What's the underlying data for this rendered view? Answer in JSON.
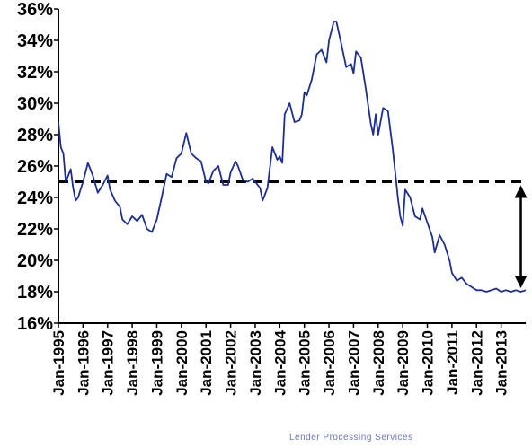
{
  "chart_data": {
    "type": "line",
    "title": "",
    "xlabel": "",
    "ylabel": "",
    "y_tick_labels": [
      "36%",
      "34%",
      "32%",
      "30%",
      "28%",
      "26%",
      "24%",
      "22%",
      "20%",
      "18%",
      "16%"
    ],
    "y_tick_values": [
      36,
      34,
      32,
      30,
      28,
      26,
      24,
      22,
      20,
      18,
      16
    ],
    "ylim": [
      16,
      36
    ],
    "x_tick_labels": [
      "Jan-1995",
      "Jan-1996",
      "Jan-1997",
      "Jan-1998",
      "Jan-1999",
      "Jan-2000",
      "Jan-2001",
      "Jan-2002",
      "Jan-2003",
      "Jan-2004",
      "Jan-2005",
      "Jan-2006",
      "Jan-2007",
      "Jan-2008",
      "Jan-2009",
      "Jan-2010",
      "Jan-2011",
      "Jan-2012",
      "Jan-2013"
    ],
    "x_tick_years": [
      1995,
      1996,
      1997,
      1998,
      1999,
      2000,
      2001,
      2002,
      2003,
      2004,
      2005,
      2006,
      2007,
      2008,
      2009,
      2010,
      2011,
      2012,
      2013
    ],
    "xlim": [
      1995,
      2014
    ],
    "grid": false,
    "series_color": "#1c2f8f",
    "series": [
      {
        "x": [
          1995.0,
          1995.1,
          1995.2,
          1995.3,
          1995.5,
          1995.6,
          1995.7,
          1995.8,
          1996.0,
          1996.2,
          1996.4,
          1996.6,
          1996.8,
          1997.0,
          1997.1,
          1997.3,
          1997.5,
          1997.6,
          1997.8,
          1998.0,
          1998.2,
          1998.4,
          1998.6,
          1998.8,
          1999.0,
          1999.2,
          1999.4,
          1999.6,
          1999.8,
          2000.0,
          2000.2,
          2000.4,
          2000.6,
          2000.8,
          2001.0,
          2001.1,
          2001.3,
          2001.5,
          2001.7,
          2001.9,
          2002.0,
          2002.2,
          2002.3,
          2002.5,
          2002.7,
          2002.9,
          2003.0,
          2003.2,
          2003.3,
          2003.5,
          2003.7,
          2003.9,
          2004.0,
          2004.1,
          2004.2,
          2004.4,
          2004.6,
          2004.8,
          2004.9,
          2005.0,
          2005.1,
          2005.3,
          2005.5,
          2005.7,
          2005.9,
          2006.0,
          2006.2,
          2006.3,
          2006.5,
          2006.7,
          2006.9,
          2007.0,
          2007.1,
          2007.3,
          2007.5,
          2007.7,
          2007.8,
          2007.9,
          2008.0,
          2008.2,
          2008.4,
          2008.6,
          2008.8,
          2008.9,
          2009.0,
          2009.1,
          2009.3,
          2009.5,
          2009.7,
          2009.8,
          2010.0,
          2010.2,
          2010.3,
          2010.5,
          2010.7,
          2010.9,
          2011.0,
          2011.2,
          2011.4,
          2011.6,
          2011.8,
          2012.0,
          2012.2,
          2012.4,
          2012.6,
          2012.8,
          2013.0,
          2013.2,
          2013.4,
          2013.6,
          2013.8,
          2014.0
        ],
        "y": [
          28.8,
          27.2,
          26.8,
          25.0,
          25.8,
          24.6,
          23.8,
          24.0,
          25.0,
          26.2,
          25.4,
          24.3,
          24.8,
          25.4,
          24.5,
          23.8,
          23.4,
          22.6,
          22.3,
          22.8,
          22.5,
          22.9,
          22.0,
          21.8,
          22.6,
          24.0,
          25.5,
          25.3,
          26.5,
          26.8,
          28.1,
          26.8,
          26.5,
          26.3,
          25.0,
          24.9,
          25.7,
          26.0,
          24.8,
          24.8,
          25.6,
          26.3,
          26.0,
          25.1,
          25.0,
          25.2,
          25.0,
          24.6,
          23.8,
          24.6,
          27.2,
          26.4,
          26.6,
          26.2,
          29.3,
          30.0,
          28.8,
          28.9,
          29.3,
          30.7,
          30.5,
          31.5,
          33.1,
          33.4,
          32.6,
          34.0,
          35.2,
          35.2,
          33.8,
          32.3,
          32.5,
          31.9,
          33.3,
          32.9,
          30.9,
          28.7,
          28.0,
          29.3,
          28.0,
          29.7,
          29.5,
          27.0,
          24.0,
          22.8,
          22.2,
          24.5,
          24.0,
          22.8,
          22.6,
          23.3,
          22.4,
          21.5,
          20.5,
          21.6,
          21.0,
          20.0,
          19.2,
          18.7,
          18.9,
          18.5,
          18.3,
          18.1,
          18.1,
          18.0,
          18.1,
          18.2,
          18.0,
          18.1,
          18.0,
          18.1,
          18.0,
          18.1
        ]
      }
    ],
    "reference_line": {
      "value": 25,
      "style": "dashed"
    },
    "annotation": {
      "type": "double-arrow",
      "from": 25,
      "to": 18,
      "at_year": 2013.8
    }
  },
  "watermark": "Lender Processing Services"
}
